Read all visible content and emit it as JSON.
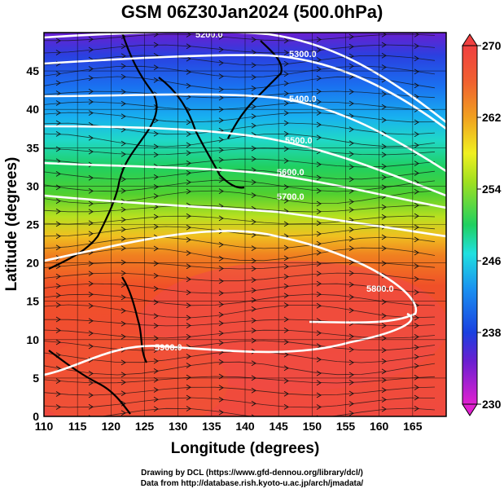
{
  "title": "GSM 06Z30Jan2024 (500.0hPa)",
  "axes": {
    "xlabel": "Longitude (degrees)",
    "ylabel": "Latitude  (degrees)",
    "x_ticks": [
      "110",
      "115",
      "120",
      "125",
      "130",
      "135",
      "140",
      "145",
      "150",
      "155",
      "160",
      "165"
    ],
    "y_ticks": [
      "0",
      "5",
      "10",
      "15",
      "20",
      "25",
      "30",
      "35",
      "40",
      "45"
    ],
    "xlim": [
      110,
      170
    ],
    "ylim": [
      0,
      50
    ]
  },
  "colorbar": {
    "ticks": [
      "230",
      "238",
      "246",
      "254",
      "262",
      "270"
    ],
    "range": [
      230,
      270
    ],
    "colors": [
      "#e020d0",
      "#5a1fd0",
      "#1840e0",
      "#1aa0f0",
      "#20e0e0",
      "#20d040",
      "#a0e020",
      "#f0f020",
      "#f0a020",
      "#f06030",
      "#f04040"
    ]
  },
  "chart_data": {
    "type": "map",
    "field": "temperature (K) shading with 500hPa geopotential height contours and wind streamlines",
    "contours": [
      {
        "label": "5200.0",
        "value": 5200
      },
      {
        "label": "5300.0",
        "value": 5300
      },
      {
        "label": "5400.0",
        "value": 5400
      },
      {
        "label": "5500.0",
        "value": 5500
      },
      {
        "label": "5600.0",
        "value": 5600
      },
      {
        "label": "5700.0",
        "value": 5700
      },
      {
        "label": "5800.0",
        "value": 5800
      },
      {
        "label": "5900.0",
        "value": 5900
      }
    ]
  },
  "credits": {
    "line1": "Drawing by DCL (https://www.gfd-dennou.org/library/dcl/)",
    "line2": "Data from http://database.rish.kyoto-u.ac.jp/arch/jmadata/"
  }
}
